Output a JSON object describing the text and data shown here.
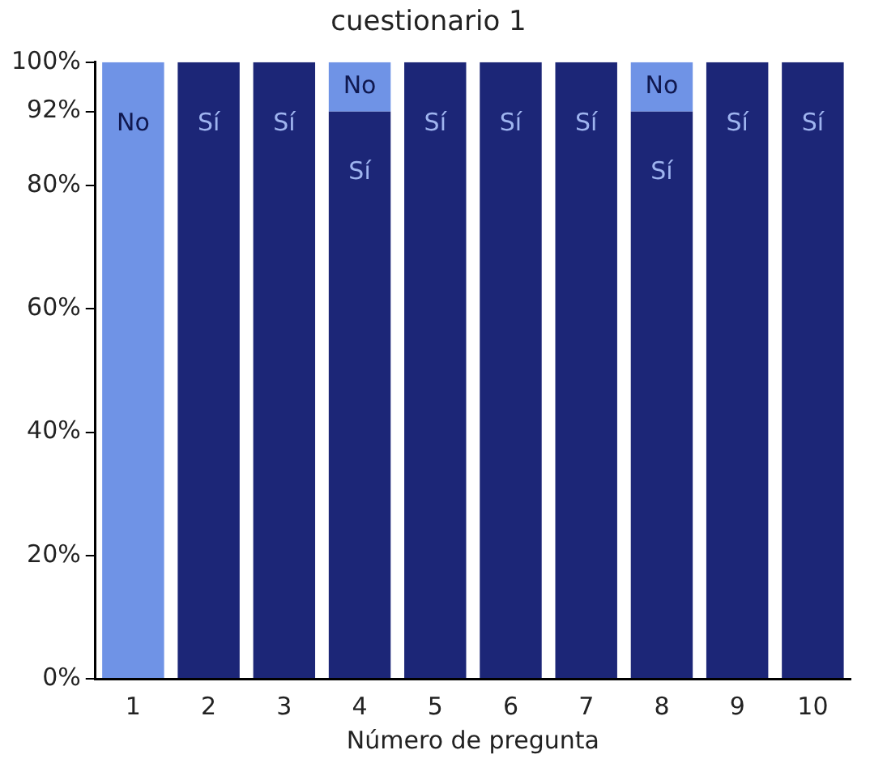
{
  "chart_data": {
    "type": "bar",
    "stacked": true,
    "title": "cuestionario 1",
    "xlabel": "Número de pregunta",
    "categories": [
      "1",
      "2",
      "3",
      "4",
      "5",
      "6",
      "7",
      "8",
      "9",
      "10"
    ],
    "series": [
      {
        "color": "#1c2677",
        "values": [
          0,
          100,
          100,
          92,
          100,
          100,
          100,
          92,
          100,
          100
        ],
        "value_labels": [
          null,
          "Sí",
          "Sí",
          "Sí",
          "Sí",
          "Sí",
          "Sí",
          "Sí",
          "Sí",
          "Sí"
        ]
      },
      {
        "color": "#6f93e6",
        "values": [
          100,
          0,
          0,
          8,
          0,
          0,
          0,
          8,
          0,
          0
        ],
        "value_labels": [
          "No",
          null,
          null,
          "No",
          null,
          null,
          null,
          "No",
          null,
          null
        ]
      }
    ],
    "ylim": [
      0,
      100
    ],
    "yticks": [
      {
        "value": 0,
        "label": "0%"
      },
      {
        "value": 20,
        "label": "20%"
      },
      {
        "value": 40,
        "label": "40%"
      },
      {
        "value": 60,
        "label": "60%"
      },
      {
        "value": 80,
        "label": "80%"
      },
      {
        "value": 92,
        "label": "92%"
      },
      {
        "value": 100,
        "label": "100%"
      }
    ],
    "grid": false,
    "legend": false
  }
}
